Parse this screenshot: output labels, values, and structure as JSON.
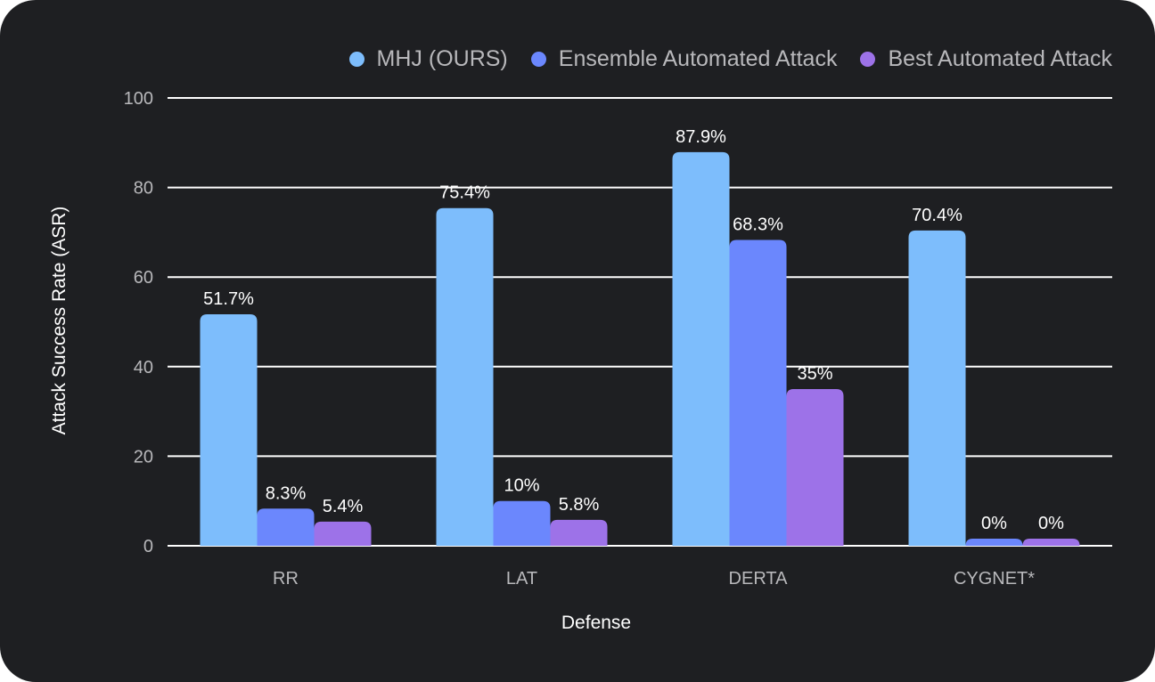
{
  "chart_data": {
    "type": "bar",
    "title": "",
    "xlabel": "Defense",
    "ylabel": "Attack Success Rate (ASR)",
    "ylim": [
      0,
      100
    ],
    "yticks": [
      0,
      20,
      40,
      60,
      80,
      100
    ],
    "grid": true,
    "legend_position": "top-right",
    "categories": [
      "RR",
      "LAT",
      "DERTA",
      "CYGNET*"
    ],
    "series": [
      {
        "name": "MHJ (OURS)",
        "color": "#7dbdfc",
        "values": [
          51.7,
          75.4,
          87.9,
          70.4
        ],
        "labels": [
          "51.7%",
          "75.4%",
          "87.9%",
          "70.4%"
        ]
      },
      {
        "name": "Ensemble Automated Attack",
        "color": "#6b87fd",
        "values": [
          8.3,
          10,
          68.3,
          0
        ],
        "labels": [
          "8.3%",
          "10%",
          "68.3%",
          "0%"
        ]
      },
      {
        "name": "Best Automated Attack",
        "color": "#9d72e8",
        "values": [
          5.4,
          5.8,
          35,
          0
        ],
        "labels": [
          "5.4%",
          "5.8%",
          "35%",
          "0%"
        ]
      }
    ]
  }
}
